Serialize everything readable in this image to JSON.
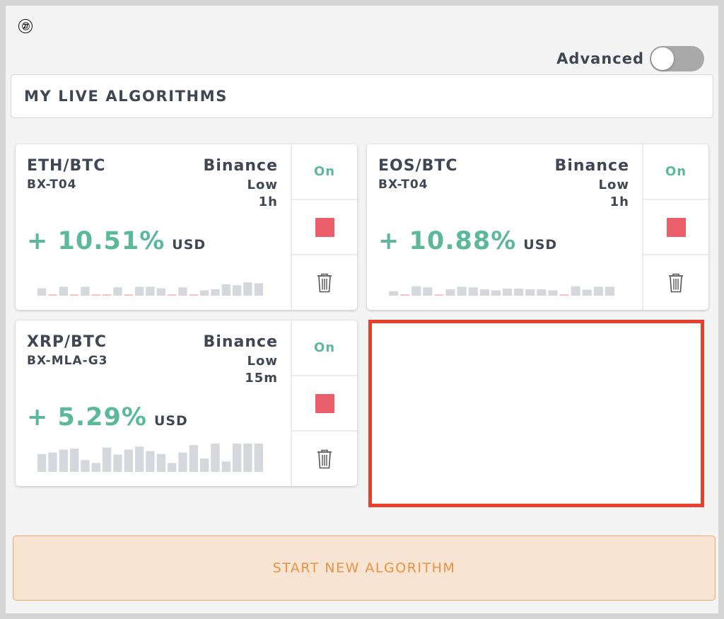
{
  "step_badge": "㉗",
  "advanced": {
    "label": "Advanced",
    "enabled": false
  },
  "section": {
    "title": "MY LIVE ALGORITHMS"
  },
  "cards": [
    {
      "pair": "ETH/BTC",
      "algo_id": "BX-T04",
      "exchange": "Binance",
      "risk": "Low",
      "interval": "1h",
      "performance": "+ 10.51%",
      "unit": "USD",
      "status": "On",
      "sparkline": [
        0.25,
        -0.08,
        0.3,
        -0.08,
        0.3,
        -0.06,
        -0.06,
        0.28,
        -0.1,
        0.3,
        0.3,
        0.25,
        -0.1,
        0.28,
        -0.08,
        0.18,
        0.22,
        0.38,
        0.35,
        0.45,
        0.42
      ]
    },
    {
      "pair": "EOS/BTC",
      "algo_id": "BX-T04",
      "exchange": "Binance",
      "risk": "Low",
      "interval": "1h",
      "performance": "+ 10.88%",
      "unit": "USD",
      "status": "On",
      "sparkline": [
        0.15,
        -0.08,
        0.32,
        0.28,
        -0.06,
        0.22,
        0.3,
        0.28,
        0.22,
        0.18,
        0.24,
        0.24,
        0.22,
        0.22,
        0.18,
        -0.1,
        0.32,
        0.2,
        0.3,
        0.3
      ]
    },
    {
      "pair": "XRP/BTC",
      "algo_id": "BX-MLA-G3",
      "exchange": "Binance",
      "risk": "Low",
      "interval": "15m",
      "performance": "+ 5.29%",
      "unit": "USD",
      "status": "On",
      "sparkline": [
        0.6,
        0.65,
        0.75,
        0.78,
        0.4,
        0.3,
        0.82,
        0.58,
        0.75,
        0.85,
        0.7,
        0.6,
        0.3,
        0.65,
        0.9,
        0.45,
        0.95,
        0.35,
        0.95,
        0.95,
        0.95
      ]
    }
  ],
  "colors": {
    "positive": "#5bb99a",
    "negative": "#f4c4c8",
    "bar": "#d6d7dc",
    "stop": "#ea5e6a",
    "highlight": "#e8402c"
  },
  "start_button": {
    "label": "START NEW ALGORITHM"
  }
}
